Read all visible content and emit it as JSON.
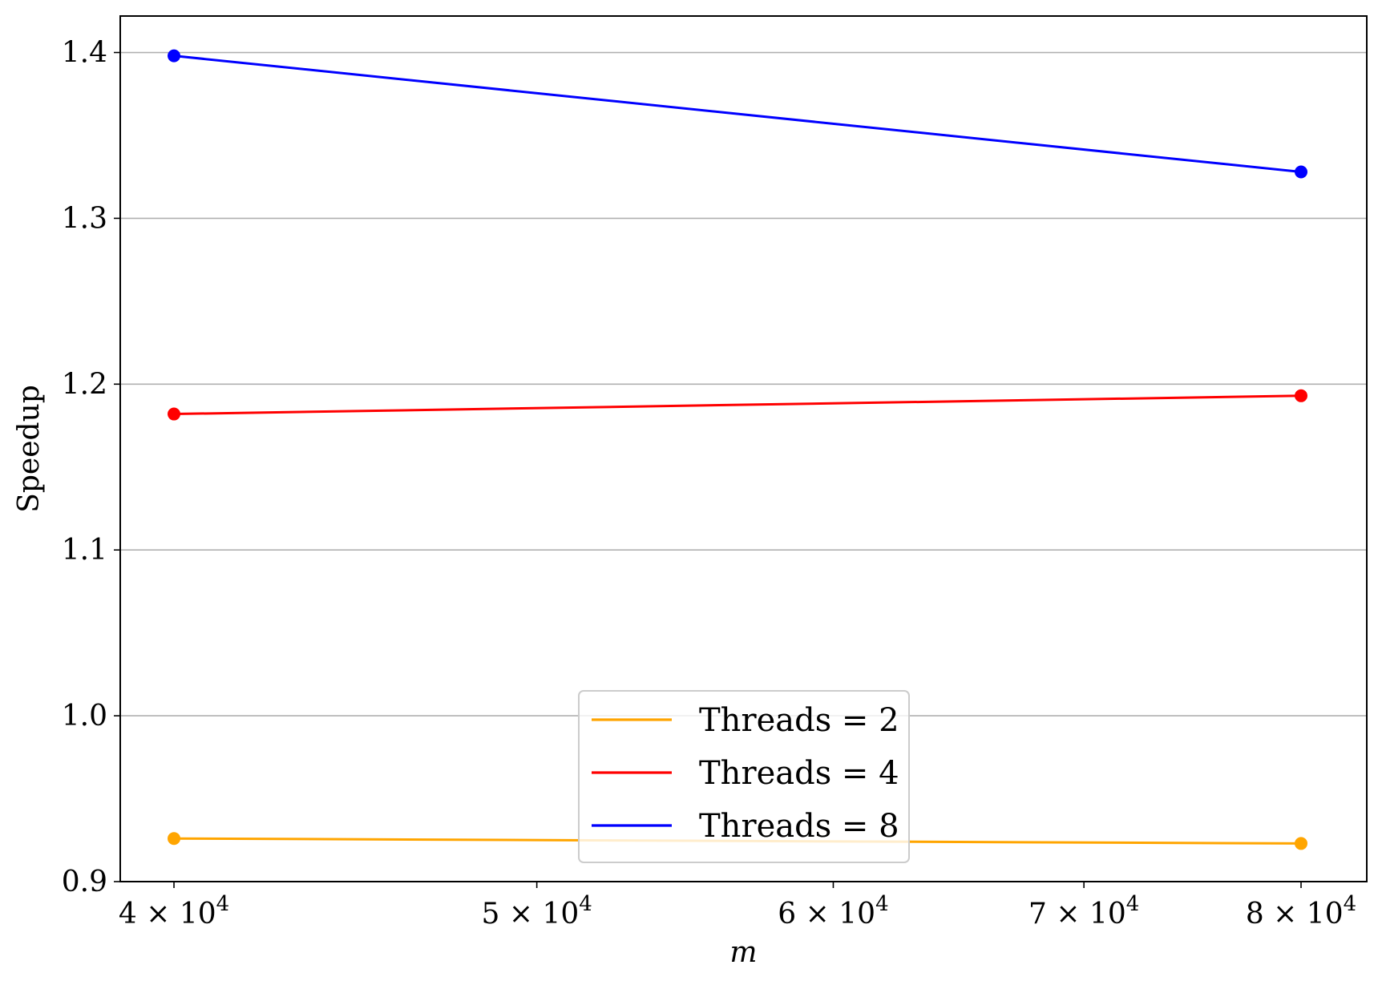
{
  "chart_data": {
    "type": "line",
    "xscale": "log",
    "x": [
      40000,
      80000
    ],
    "xlabel": "m",
    "ylabel": "Speedup",
    "xlim": [
      38700,
      83300
    ],
    "ylim": [
      0.9,
      1.422
    ],
    "xticks": [
      {
        "value": 40000,
        "mantissa": "4",
        "times": "×",
        "base": "10",
        "exp": "4"
      },
      {
        "value": 50000,
        "mantissa": "5",
        "times": "×",
        "base": "10",
        "exp": "4"
      },
      {
        "value": 60000,
        "mantissa": "6",
        "times": "×",
        "base": "10",
        "exp": "4"
      },
      {
        "value": 70000,
        "mantissa": "7",
        "times": "×",
        "base": "10",
        "exp": "4"
      },
      {
        "value": 80000,
        "mantissa": "8",
        "times": "×",
        "base": "10",
        "exp": "4"
      }
    ],
    "yticks": [
      {
        "value": 0.9,
        "label": "0.9"
      },
      {
        "value": 1.0,
        "label": "1.0"
      },
      {
        "value": 1.1,
        "label": "1.1"
      },
      {
        "value": 1.2,
        "label": "1.2"
      },
      {
        "value": 1.3,
        "label": "1.3"
      },
      {
        "value": 1.4,
        "label": "1.4"
      }
    ],
    "grid": "y",
    "legend_position": "bottom-center",
    "series": [
      {
        "name": "Threads = 2",
        "color": "#ffa500",
        "values": [
          0.926,
          0.923
        ]
      },
      {
        "name": "Threads = 4",
        "color": "#ff0000",
        "values": [
          1.182,
          1.193
        ]
      },
      {
        "name": "Threads = 8",
        "color": "#0000ff",
        "values": [
          1.398,
          1.328
        ]
      }
    ]
  }
}
